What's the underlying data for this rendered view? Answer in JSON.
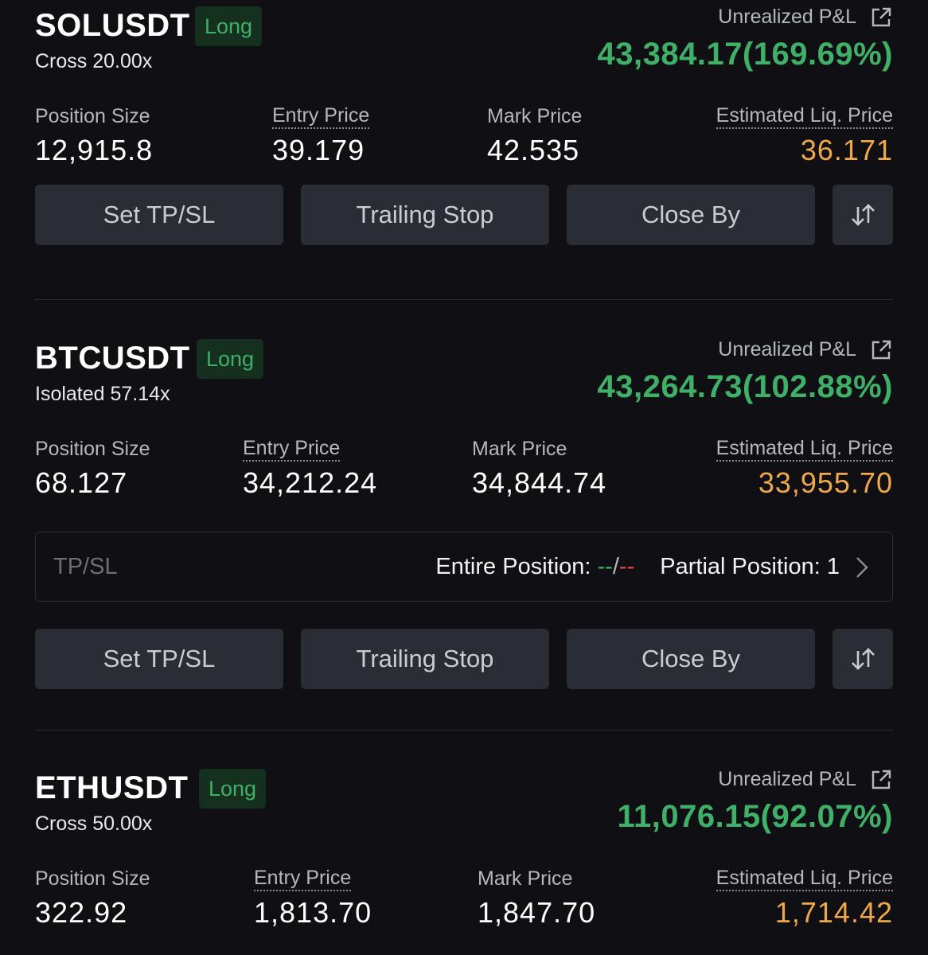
{
  "common": {
    "unrealized_pnl_label": "Unrealized P&L",
    "position_size_label": "Position Size",
    "entry_price_label": "Entry Price",
    "mark_price_label": "Mark Price",
    "liq_price_label": "Estimated Liq. Price",
    "set_tpsl_label": "Set TP/SL",
    "trailing_stop_label": "Trailing Stop",
    "close_by_label": "Close By"
  },
  "colors": {
    "positive": "#3fb068",
    "negative": "#e0484c",
    "liquidation": "#f0a94a"
  },
  "positions": [
    {
      "symbol": "SOLUSDT",
      "side": "Long",
      "margin_mode": "Cross 20.00x",
      "pnl": "43,384.17(169.69%)",
      "position_size": "12,915.8",
      "entry_price": "39.179",
      "mark_price": "42.535",
      "liq_price": "36.171"
    },
    {
      "symbol": "BTCUSDT",
      "side": "Long",
      "margin_mode": "Isolated 57.14x",
      "pnl": "43,264.73(102.88%)",
      "position_size": "68.127",
      "entry_price": "34,212.24",
      "mark_price": "34,844.74",
      "liq_price": "33,955.70",
      "tpsl": {
        "label": "TP/SL",
        "entire_label": "Entire Position:",
        "entire_tp": "--",
        "entire_sep": "/",
        "entire_sl": "--",
        "partial_label": "Partial Position:",
        "partial_count": "1"
      }
    },
    {
      "symbol": "ETHUSDT",
      "side": "Long",
      "margin_mode": "Cross 50.00x",
      "pnl": "11,076.15(92.07%)",
      "position_size": "322.92",
      "entry_price": "1,813.70",
      "mark_price": "1,847.70",
      "liq_price": "1,714.42"
    }
  ],
  "icons": {
    "share": "share-external-icon",
    "swap": "reverse-position-icon",
    "chevron": "chevron-right-icon"
  }
}
